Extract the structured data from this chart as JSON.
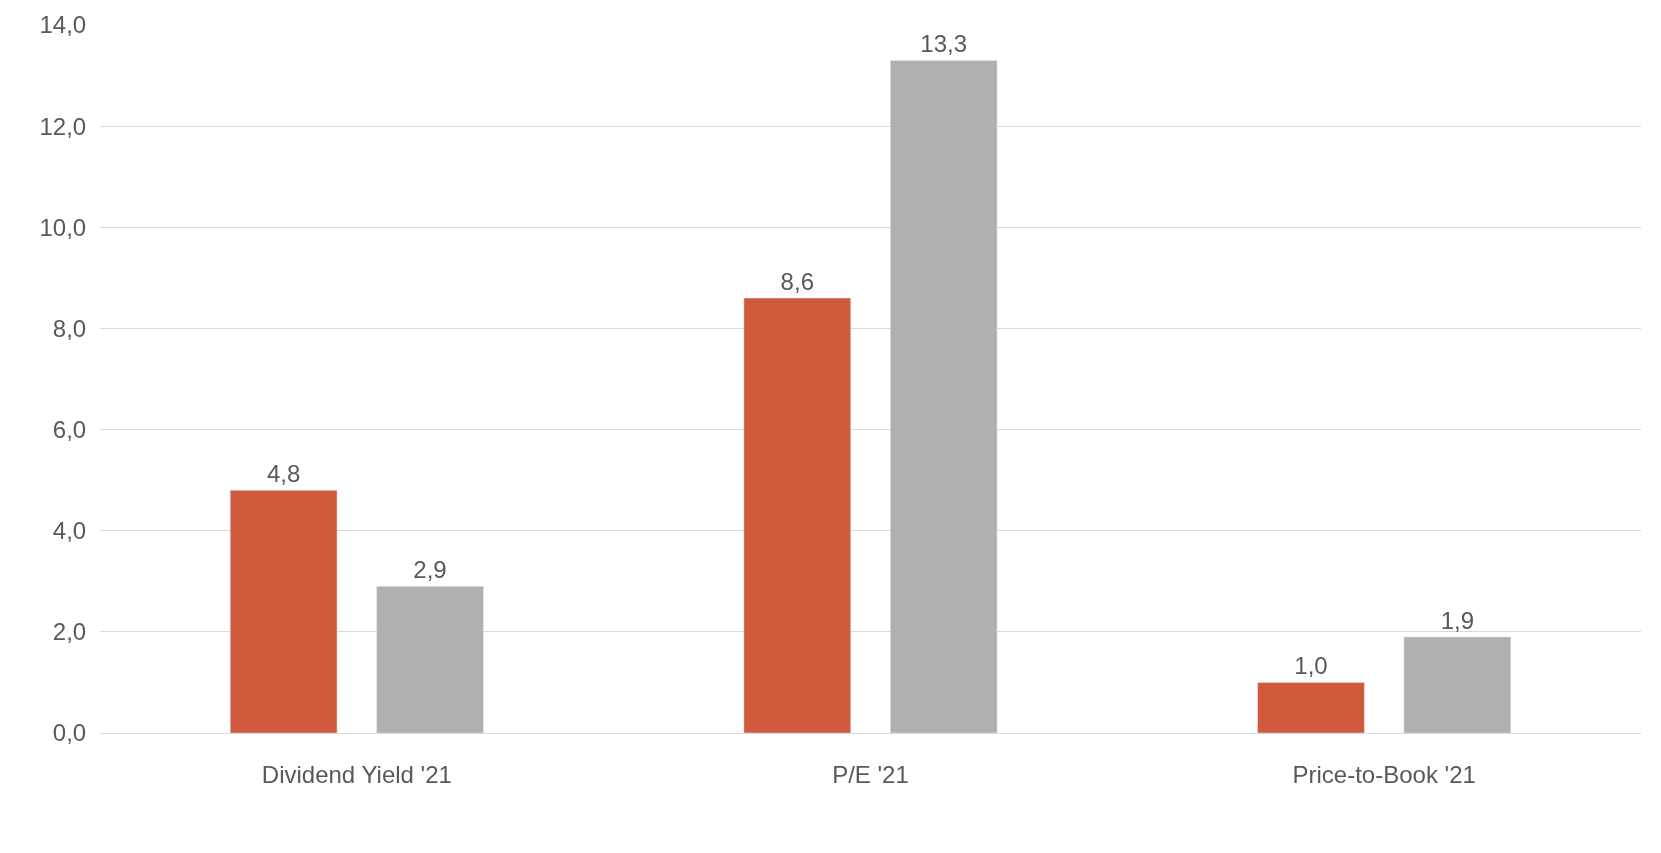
{
  "chart_data": {
    "type": "bar",
    "categories": [
      "Dividend Yield '21",
      "P/E '21",
      "Price-to-Book '21"
    ],
    "series": [
      {
        "color": "#d05a3c",
        "values": [
          4.8,
          8.6,
          1.0
        ],
        "value_labels": [
          "4,8",
          "8,6",
          "1,0"
        ]
      },
      {
        "color": "#b0b0b0",
        "values": [
          2.9,
          13.3,
          1.9
        ],
        "value_labels": [
          "2,9",
          "13,3",
          "1,9"
        ]
      }
    ],
    "ylim": [
      0,
      14
    ],
    "yticks": [
      {
        "value": 0,
        "label": "0,0"
      },
      {
        "value": 2,
        "label": "2,0"
      },
      {
        "value": 4,
        "label": "4,0"
      },
      {
        "value": 6,
        "label": "6,0"
      },
      {
        "value": 8,
        "label": "8,0"
      },
      {
        "value": 10,
        "label": "10,0"
      },
      {
        "value": 12,
        "label": "12,0"
      },
      {
        "value": 14,
        "label": "14,0"
      }
    ],
    "grid": "y"
  }
}
